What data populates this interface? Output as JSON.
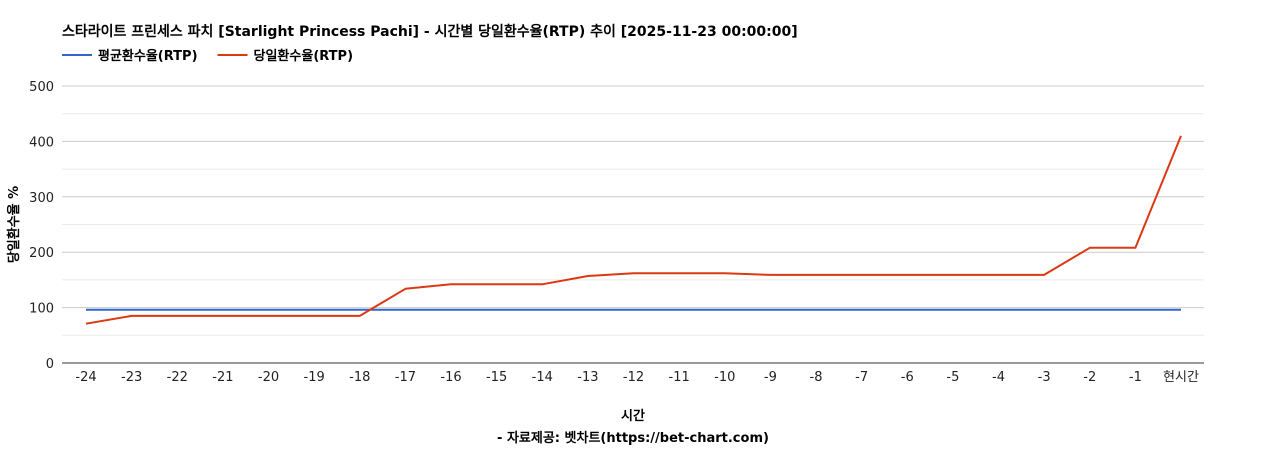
{
  "chart_data": {
    "type": "line",
    "title": "스타라이트 프린세스 파치 [Starlight Princess Pachi] - 시간별 당일환수율(RTP) 추이 [2025-11-23 00:00:00]",
    "xlabel": "시간",
    "ylabel": "당일환수율 %",
    "footer": "- 자료제공: 벳차트(https://bet-chart.com)",
    "legend_position": "top-left",
    "grid": true,
    "ylim": [
      0,
      500
    ],
    "yticks": [
      "0",
      "100",
      "200",
      "300",
      "400",
      "500"
    ],
    "categories": [
      "-24",
      "-23",
      "-22",
      "-21",
      "-20",
      "-19",
      "-18",
      "-17",
      "-16",
      "-15",
      "-14",
      "-13",
      "-12",
      "-11",
      "-10",
      "-9",
      "-8",
      "-7",
      "-6",
      "-5",
      "-4",
      "-3",
      "-2",
      "-1",
      "현시간"
    ],
    "series": [
      {
        "name": "평균환수율(RTP)",
        "color": "#3366cc",
        "values": [
          96,
          96,
          96,
          96,
          96,
          96,
          96,
          96,
          96,
          96,
          96,
          96,
          96,
          96,
          96,
          96,
          96,
          96,
          96,
          96,
          96,
          96,
          96,
          96,
          96
        ]
      },
      {
        "name": "당일환수율(RTP)",
        "color": "#dc3912",
        "values": [
          71,
          85,
          85,
          85,
          85,
          85,
          85,
          134,
          142,
          142,
          142,
          157,
          162,
          162,
          162,
          159,
          159,
          159,
          159,
          159,
          159,
          159,
          208,
          208,
          410
        ]
      }
    ]
  }
}
